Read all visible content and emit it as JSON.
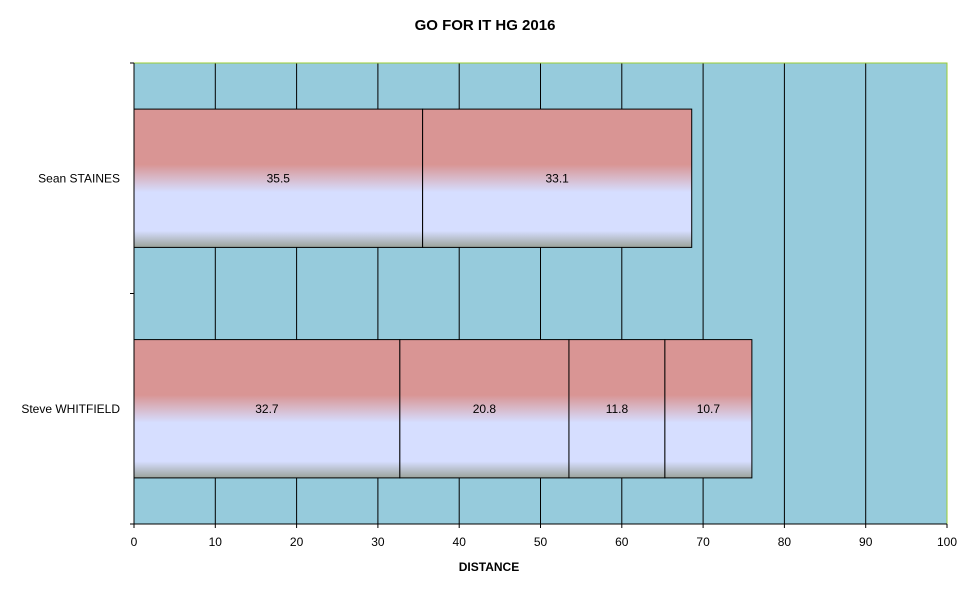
{
  "chart_data": {
    "type": "bar",
    "orientation": "horizontal",
    "stacked": true,
    "title": "GO FOR IT HG 2016",
    "xlabel": "DISTANCE",
    "ylabel": "",
    "xlim": [
      0,
      100
    ],
    "x_ticks": [
      "0",
      "10",
      "20",
      "30",
      "40",
      "50",
      "60",
      "70",
      "80",
      "90",
      "100"
    ],
    "grid": "vertical",
    "legend": "none",
    "colors": {
      "plot_background": "#96CBDC",
      "bar_top": "#D99594",
      "bar_bottom": "#D6DEFF",
      "grid": "#000000",
      "plot_border": "#99CC33"
    },
    "categories": [
      "Sean STAINES",
      "Steve WHITFIELD"
    ],
    "segments": [
      [
        35.5,
        33.1
      ],
      [
        32.7,
        20.8,
        11.8,
        10.7
      ]
    ]
  }
}
